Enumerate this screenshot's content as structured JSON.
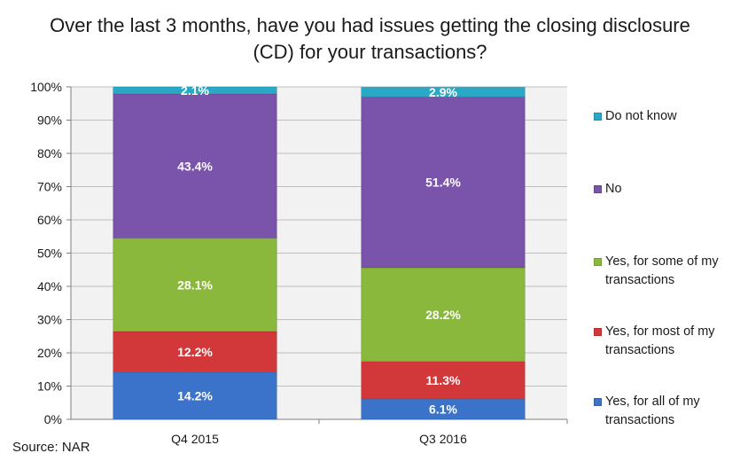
{
  "title_lines": [
    "Over the last 3 months, have you had issues getting the closing disclosure",
    "(CD) for your transactions?"
  ],
  "source": "Source: NAR",
  "chart_data": {
    "type": "bar",
    "stacked": true,
    "title": "Over the last 3 months, have you had issues getting the closing disclosure (CD) for your transactions?",
    "categories": [
      "Q4 2015",
      "Q3 2016"
    ],
    "series": [
      {
        "name": "Yes, for all of my transactions",
        "values": [
          14.2,
          6.1
        ],
        "color": "#3a73c9"
      },
      {
        "name": "Yes, for most of my transactions",
        "values": [
          12.2,
          11.3
        ],
        "color": "#d2383a"
      },
      {
        "name": "Yes, for some of my transactions",
        "values": [
          28.1,
          28.2
        ],
        "color": "#8ab83c"
      },
      {
        "name": "No",
        "values": [
          43.4,
          51.4
        ],
        "color": "#7a53ab"
      },
      {
        "name": "Do not know",
        "values": [
          2.1,
          2.9
        ],
        "color": "#29a9c6"
      }
    ],
    "data_labels": [
      [
        "14.2%",
        "6.1%"
      ],
      [
        "12.2%",
        "11.3%"
      ],
      [
        "28.1%",
        "28.2%"
      ],
      [
        "43.4%",
        "51.4%"
      ],
      [
        "2.1%",
        "2.9%"
      ]
    ],
    "y_ticks": [
      "0%",
      "10%",
      "20%",
      "30%",
      "40%",
      "50%",
      "60%",
      "70%",
      "80%",
      "90%",
      "100%"
    ],
    "ylim": [
      0,
      100
    ],
    "grid": true,
    "legend": "right",
    "legend_entries": [
      "Do not know",
      "No",
      "Yes, for some of my transactions",
      "Yes, for most of my transactions",
      "Yes, for all of my transactions"
    ],
    "legend_colors": [
      "#29a9c6",
      "#7a53ab",
      "#8ab83c",
      "#d2383a",
      "#3a73c9"
    ]
  }
}
